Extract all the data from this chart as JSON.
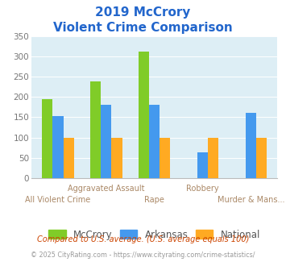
{
  "title_line1": "2019 McCrory",
  "title_line2": "Violent Crime Comparison",
  "categories": [
    "All Violent Crime",
    "Aggravated Assault",
    "Rape",
    "Robbery",
    "Murder & Mans..."
  ],
  "series": {
    "McCrory": [
      195,
      238,
      312,
      0,
      0
    ],
    "Arkansas": [
      153,
      180,
      181,
      64,
      161
    ],
    "National": [
      100,
      100,
      100,
      100,
      100
    ]
  },
  "colors": {
    "McCrory": "#80cc28",
    "Arkansas": "#4499ee",
    "National": "#ffaa22"
  },
  "ylim": [
    0,
    350
  ],
  "yticks": [
    0,
    50,
    100,
    150,
    200,
    250,
    300,
    350
  ],
  "title_color": "#2266cc",
  "footnote1": "Compared to U.S. average. (U.S. average equals 100)",
  "footnote2": "© 2025 CityRating.com - https://www.cityrating.com/crime-statistics/",
  "footnote1_color": "#cc4400",
  "footnote2_color": "#999999",
  "plot_bg_color": "#ddeef5",
  "bar_width": 0.22,
  "legend_labels": [
    "McCrory",
    "Arkansas",
    "National"
  ],
  "xticklabel_fontsize": 7.0,
  "yticklabel_fontsize": 7.5,
  "title_fontsize1": 11,
  "title_fontsize2": 11,
  "xtick_row1_indices": [
    1,
    3
  ],
  "xtick_row2_indices": [
    0,
    2,
    4
  ]
}
